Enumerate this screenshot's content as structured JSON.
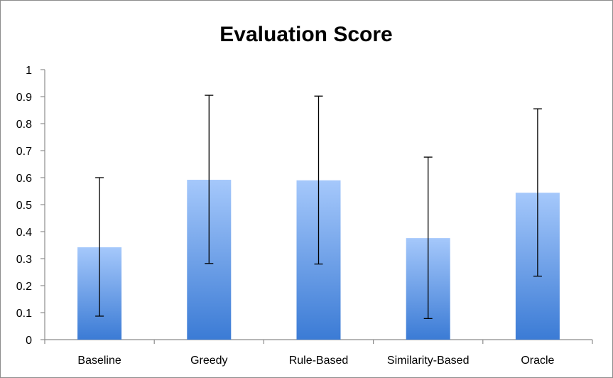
{
  "chart_data": {
    "type": "bar",
    "title": "Evaluation Score",
    "xlabel": "",
    "ylabel": "",
    "categories": [
      "Baseline",
      "Greedy",
      "Rule-Based",
      "Similarity-Based",
      "Oracle"
    ],
    "values": [
      0.342,
      0.592,
      0.59,
      0.376,
      0.544
    ],
    "error_low": [
      0.087,
      0.282,
      0.28,
      0.078,
      0.235
    ],
    "error_high": [
      0.6,
      0.905,
      0.902,
      0.676,
      0.855
    ],
    "ylim": [
      0,
      1
    ],
    "yticks": [
      "0",
      "0.1",
      "0.2",
      "0.3",
      "0.4",
      "0.5",
      "0.6",
      "0.7",
      "0.8",
      "0.9",
      "1"
    ],
    "grid": false,
    "legend": "none",
    "colors": {
      "bar_top": "#a5c8fb",
      "bar_bottom": "#3b7bd5",
      "axis": "#8c8c8c",
      "error": "#000000"
    }
  }
}
